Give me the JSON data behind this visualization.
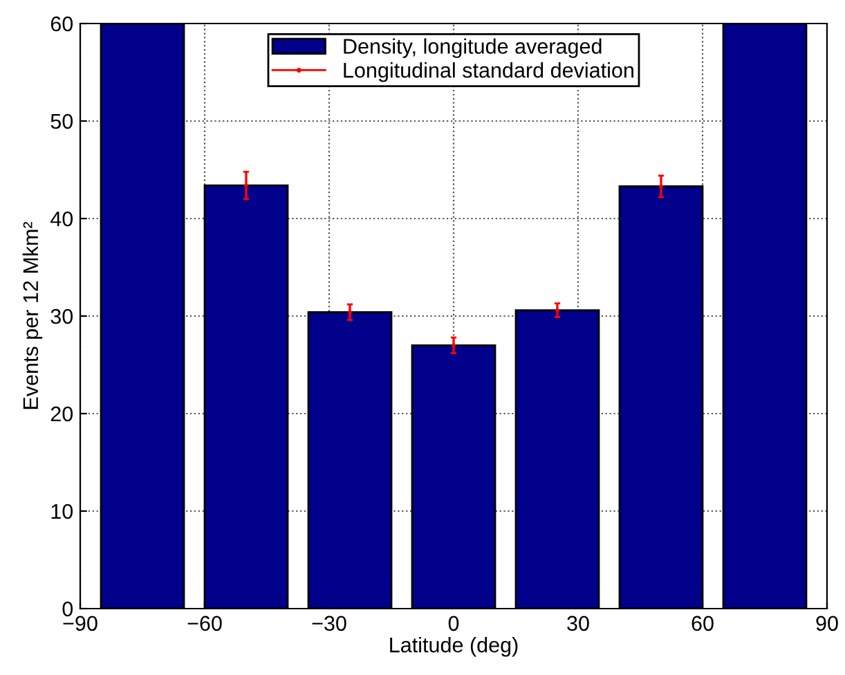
{
  "chart_data": {
    "type": "bar",
    "x": [
      -75,
      -50,
      -25,
      0,
      25,
      50,
      75
    ],
    "series": [
      {
        "name": "Density, longitude averaged",
        "color": "#00008b",
        "values": [
          60,
          43.4,
          30.4,
          27.0,
          30.6,
          43.3,
          60
        ]
      },
      {
        "name": "Longitudinal standard deviation",
        "color": "#ff0000",
        "type": "scatter",
        "values": [
          null,
          43.4,
          30.4,
          27.0,
          30.6,
          43.3,
          null
        ],
        "errors": [
          null,
          1.4,
          0.8,
          0.8,
          0.7,
          1.1,
          null
        ]
      }
    ],
    "xlabel": "Latitude (deg)",
    "ylabel": "Events per 12 Mkm²",
    "xlim": [
      -90,
      90
    ],
    "xticks": [
      {
        "value": -90,
        "label": "−90"
      },
      {
        "value": -60,
        "label": "−60"
      },
      {
        "value": -30,
        "label": "−30"
      },
      0,
      30,
      60,
      90
    ],
    "ylim": [
      0,
      60
    ],
    "yticks": [
      0,
      10,
      20,
      30,
      40,
      50,
      60
    ],
    "grid": true,
    "legend": "top"
  }
}
